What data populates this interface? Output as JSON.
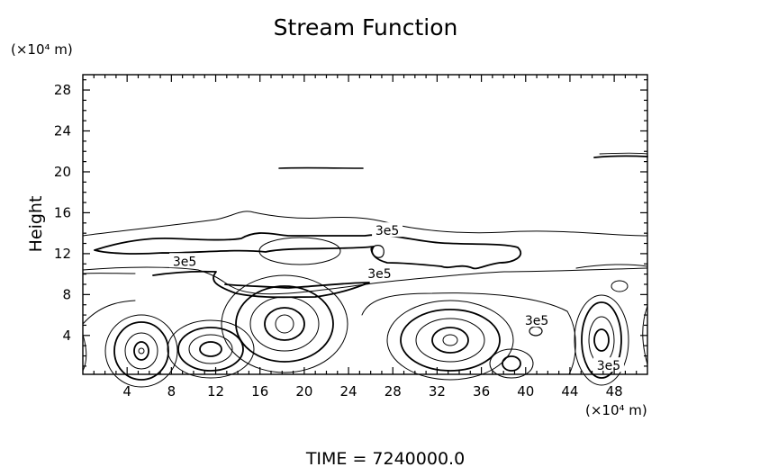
{
  "chart_data": {
    "type": "contour",
    "title": "Stream Function",
    "ylabel": "Height",
    "x_unit_label": "(×10⁴ m)",
    "y_unit_label": "(×10⁴ m)",
    "xlim": [
      0,
      51
    ],
    "ylim": [
      0.2,
      29.5
    ],
    "x_ticks": [
      4,
      8,
      12,
      16,
      20,
      24,
      28,
      32,
      36,
      40,
      44,
      48
    ],
    "y_ticks": [
      4,
      8,
      12,
      16,
      20,
      24,
      28
    ],
    "contour_labels": [
      {
        "text": "3e5",
        "x": 27.5,
        "y": 14.0
      },
      {
        "text": "3e5",
        "x": 9.2,
        "y": 11.0
      },
      {
        "text": "3e5",
        "x": 26.8,
        "y": 9.8
      },
      {
        "text": "3e5",
        "x": 41.0,
        "y": 5.2
      },
      {
        "text": "3e5",
        "x": 47.5,
        "y": 0.8
      }
    ],
    "grid": false,
    "footer": "TIME = 7240000.0"
  }
}
